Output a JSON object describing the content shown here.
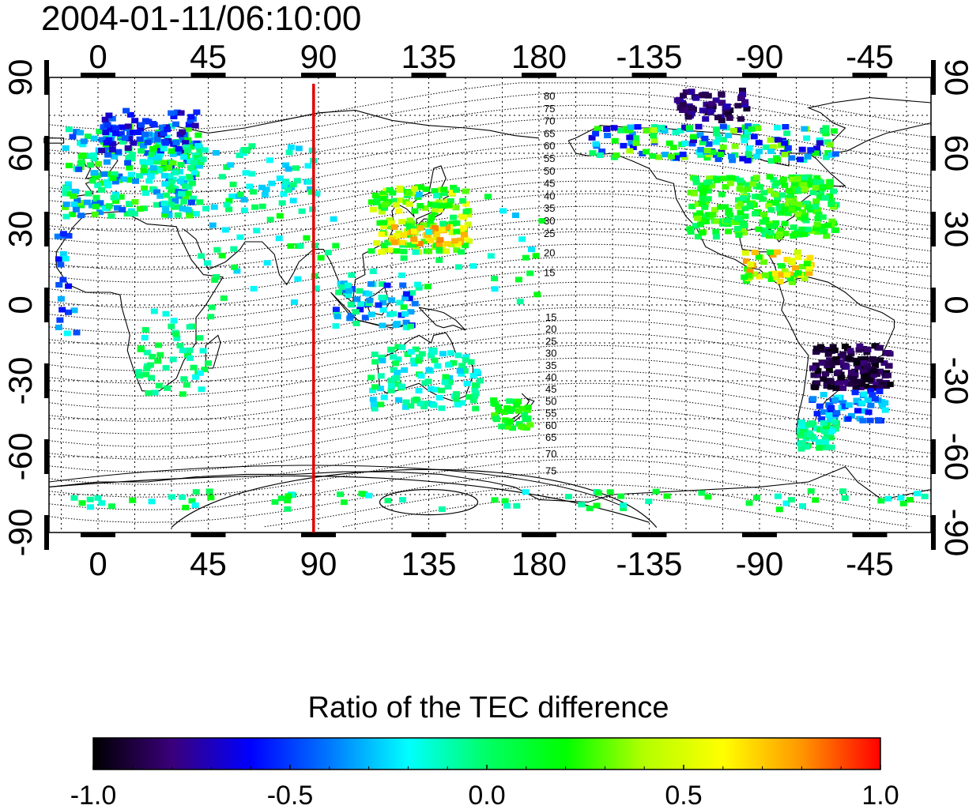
{
  "title": "2004-01-11/06:10:00",
  "colorbar": {
    "title": "Ratio of the TEC difference",
    "ticks": [
      "-1.0",
      "-0.5",
      "0.0",
      "0.5",
      "1.0"
    ],
    "range": [
      -1.0,
      1.0
    ],
    "colors": [
      "#000000",
      "#3a007a",
      "#0000ff",
      "#0078ff",
      "#00ffff",
      "#00ff64",
      "#00ff00",
      "#b4ff00",
      "#ffff00",
      "#ff9600",
      "#ff0000"
    ]
  },
  "map": {
    "lon_ticks_top": [
      "0",
      "45",
      "90",
      "135",
      "180",
      "-135",
      "-90",
      "-45"
    ],
    "lon_ticks_bottom": [
      "0",
      "45",
      "90",
      "135",
      "180",
      "-135",
      "-90",
      "-45"
    ],
    "lon_tick_values": [
      0,
      45,
      90,
      135,
      180,
      225,
      270,
      315
    ],
    "lat_ticks_left": [
      "90",
      "60",
      "30",
      "0",
      "-30",
      "-60",
      "-90"
    ],
    "lat_ticks_right": [
      "90",
      "60",
      "30",
      "0",
      "-30",
      "-60",
      "-90"
    ],
    "lat_tick_values": [
      90,
      60,
      30,
      0,
      -30,
      -60,
      -90
    ],
    "lon_range": [
      -20,
      340
    ],
    "lat_range": [
      -90,
      90
    ],
    "terminator_longitude": 88,
    "terminator_color": "#e00000",
    "contour_labels_north": [
      "80",
      "75",
      "70",
      "65",
      "60",
      "55",
      "50",
      "45",
      "40",
      "35",
      "30",
      "25",
      "20",
      "15"
    ],
    "contour_labels_south": [
      "15",
      "20",
      "25",
      "30",
      "35",
      "40",
      "45",
      "50",
      "55",
      "60",
      "65",
      "70",
      "75"
    ],
    "grid": true
  }
}
